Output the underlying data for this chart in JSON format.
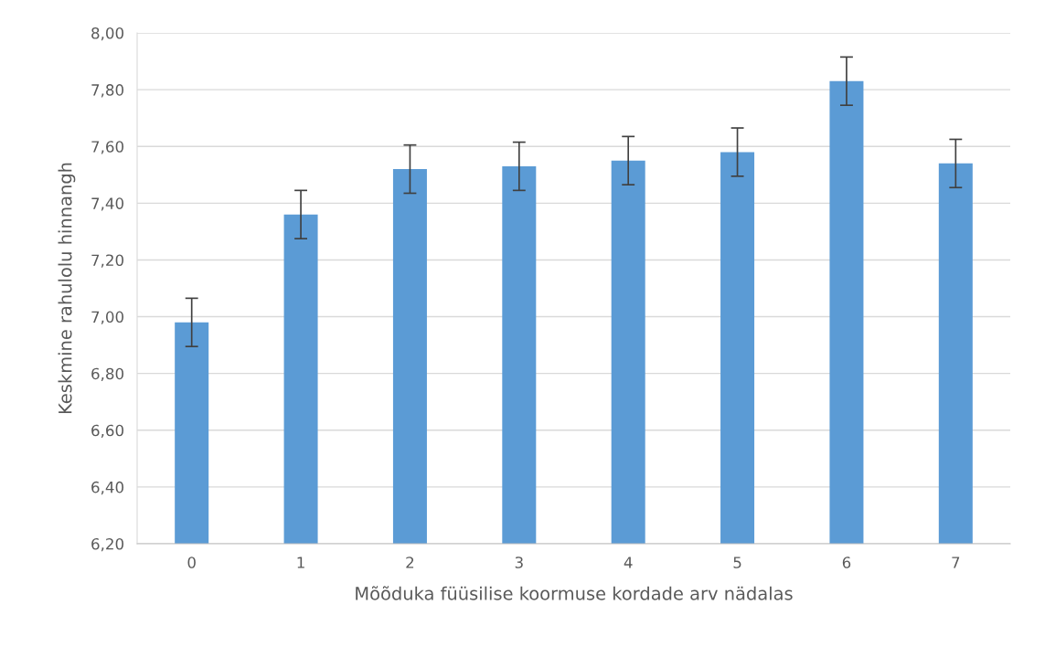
{
  "chart_data": {
    "type": "bar",
    "xlabel": "Mõõduka füüsilise koormuse kordade arv nädalas",
    "ylabel": "Keskmine rahulolu hinnangh",
    "categories": [
      "0",
      "1",
      "2",
      "3",
      "4",
      "5",
      "6",
      "7"
    ],
    "values": [
      6.98,
      7.36,
      7.52,
      7.53,
      7.55,
      7.58,
      7.83,
      7.54
    ],
    "errors": [
      0.085,
      0.085,
      0.085,
      0.085,
      0.085,
      0.085,
      0.085,
      0.085
    ],
    "color": "#5b9bd5",
    "ylim": [
      6.2,
      8.0
    ],
    "yticks": [
      {
        "value": 6.2,
        "label": "6,20"
      },
      {
        "value": 6.4,
        "label": "6,40"
      },
      {
        "value": 6.6,
        "label": "6,60"
      },
      {
        "value": 6.8,
        "label": "6,80"
      },
      {
        "value": 7.0,
        "label": "7,00"
      },
      {
        "value": 7.2,
        "label": "7,20"
      },
      {
        "value": 7.4,
        "label": "7,40"
      },
      {
        "value": 7.6,
        "label": "7,60"
      },
      {
        "value": 7.8,
        "label": "7,80"
      },
      {
        "value": 8.0,
        "label": "8,00"
      }
    ],
    "grid": "y"
  }
}
